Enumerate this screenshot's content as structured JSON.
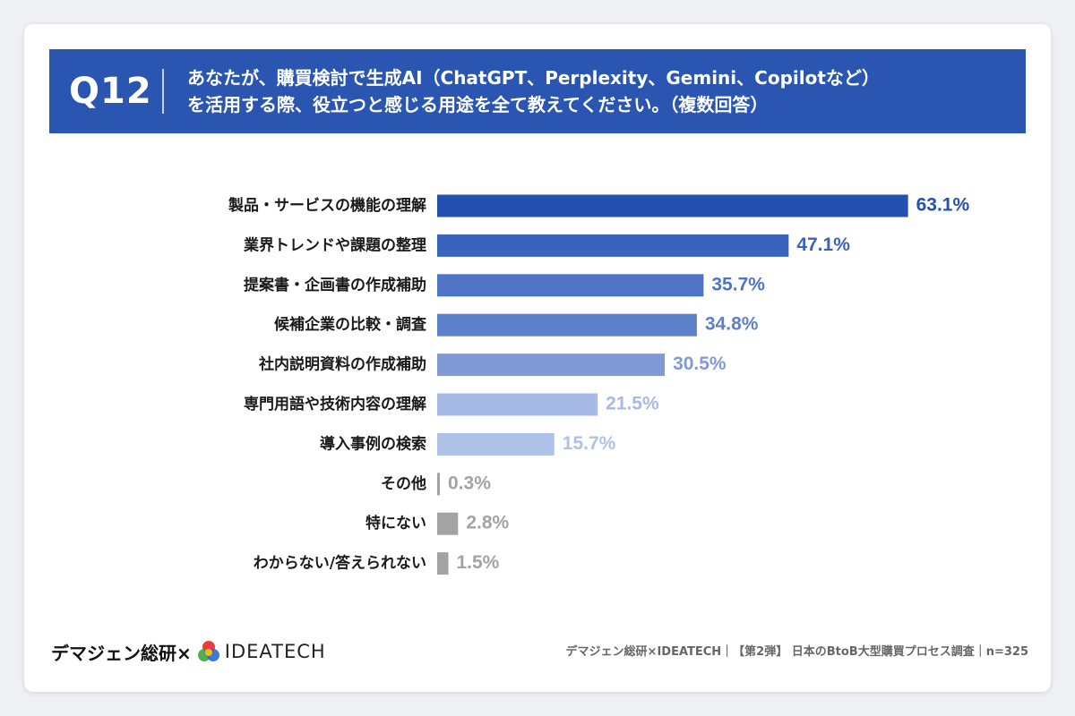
{
  "header": {
    "question_number": "Q12",
    "question_line1": "あなたが、購買検討で生成AI（ChatGPT、Perplexity、Gemini、Copilotなど）",
    "question_line2": "を活用する際、役立つと感じる用途を全て教えてください。（複数回答）"
  },
  "chart_data": {
    "type": "bar",
    "orientation": "horizontal",
    "categories": [
      "製品・サービスの機能の理解",
      "業界トレンドや課題の整理",
      "提案書・企画書の作成補助",
      "候補企業の比較・調査",
      "社内説明資料の作成補助",
      "専門用語や技術内容の理解",
      "導入事例の検索",
      "その他",
      "特にない",
      "わからない/答えられない"
    ],
    "values": [
      63.1,
      47.1,
      35.7,
      34.8,
      30.5,
      21.5,
      15.7,
      0.3,
      2.8,
      1.5
    ],
    "value_labels": [
      "63.1%",
      "47.1%",
      "35.7%",
      "34.8%",
      "30.5%",
      "21.5%",
      "15.7%",
      "0.3%",
      "2.8%",
      "1.5%"
    ],
    "bar_colors": [
      "#2450b0",
      "#3a63bd",
      "#4f74c6",
      "#5d80cb",
      "#7f9ad5",
      "#a5bae4",
      "#aec2e7",
      "#a3a3a3",
      "#a3a3a3",
      "#a3a3a3"
    ],
    "label_colors": [
      "#2450b0",
      "#3a63bd",
      "#4f74c6",
      "#5d80cb",
      "#7f9ad5",
      "#a5bae4",
      "#aec2e7",
      "#a3a3a3",
      "#a3a3a3",
      "#a3a3a3"
    ],
    "xlim": [
      0,
      100
    ],
    "grid": false,
    "axis": "none"
  },
  "footer": {
    "brand": "デマジェン総研×",
    "partner": "IDEATECH",
    "source": "デマジェン総研×IDEATECH｜【第2弾】 日本のBtoB大型購買プロセス調査｜n=325"
  },
  "colors": {
    "header_bg": "#2a56b1",
    "background": "#eef0f3",
    "card": "#ffffff"
  },
  "icons": {
    "logo": "multicolor-circle-logo-icon"
  }
}
